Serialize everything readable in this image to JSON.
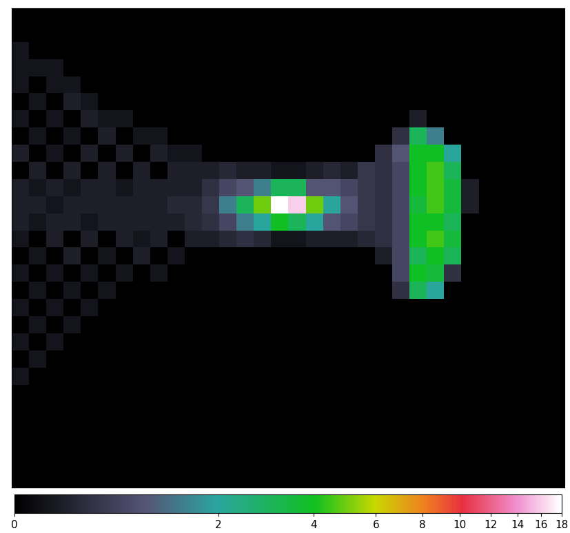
{
  "chart_data": {
    "type": "heatmap",
    "tick_labels": false,
    "cells": [
      [
        0,
        0,
        0,
        0,
        0,
        0,
        0,
        0,
        0,
        0,
        0,
        0,
        0,
        0,
        0,
        0,
        0,
        0,
        0,
        0,
        0,
        0,
        0,
        0,
        0,
        0,
        0,
        0,
        0,
        0,
        0,
        0
      ],
      [
        0,
        0,
        0,
        0,
        0,
        0,
        0,
        0,
        0,
        0,
        0,
        0,
        0,
        0,
        0,
        0,
        0,
        0,
        0,
        0,
        0,
        0,
        0,
        0,
        0,
        0,
        0,
        0,
        0,
        0,
        0,
        0
      ],
      [
        0.2,
        0,
        0,
        0,
        0,
        0,
        0,
        0,
        0,
        0,
        0,
        0,
        0,
        0,
        0,
        0,
        0,
        0,
        0,
        0,
        0,
        0,
        0,
        0,
        0,
        0,
        0,
        0,
        0,
        0,
        0,
        0
      ],
      [
        0.2,
        0.2,
        0.2,
        0,
        0,
        0,
        0,
        0,
        0,
        0,
        0,
        0,
        0,
        0,
        0,
        0,
        0,
        0,
        0,
        0,
        0,
        0,
        0,
        0,
        0,
        0,
        0,
        0,
        0,
        0,
        0,
        0
      ],
      [
        0.2,
        0,
        0.2,
        0.2,
        0,
        0,
        0,
        0,
        0,
        0,
        0,
        0,
        0,
        0,
        0,
        0,
        0,
        0,
        0,
        0,
        0,
        0,
        0,
        0,
        0,
        0,
        0,
        0,
        0,
        0,
        0,
        0
      ],
      [
        0,
        0.2,
        0,
        0.3,
        0.2,
        0,
        0,
        0,
        0,
        0,
        0,
        0,
        0,
        0,
        0,
        0,
        0,
        0,
        0,
        0,
        0,
        0,
        0,
        0,
        0,
        0,
        0,
        0,
        0,
        0,
        0,
        0
      ],
      [
        0.2,
        0,
        0.2,
        0,
        0.3,
        0.2,
        0.2,
        0,
        0,
        0,
        0,
        0,
        0,
        0,
        0,
        0,
        0,
        0,
        0,
        0,
        0,
        0,
        0,
        0.3,
        0,
        0,
        0,
        0,
        0,
        0,
        0,
        0
      ],
      [
        0,
        0.2,
        0,
        0.2,
        0,
        0.3,
        0,
        0.2,
        0.2,
        0,
        0,
        0,
        0,
        0,
        0,
        0,
        0,
        0,
        0,
        0,
        0,
        0,
        0.5,
        3,
        1.5,
        0,
        0,
        0,
        0,
        0,
        0,
        0
      ],
      [
        0.3,
        0,
        0.2,
        0,
        0.3,
        0,
        0.3,
        0,
        0.3,
        0.2,
        0.2,
        0,
        0,
        0,
        0,
        0,
        0,
        0,
        0,
        0,
        0,
        0.5,
        1,
        4,
        4,
        2,
        0,
        0,
        0,
        0,
        0,
        0
      ],
      [
        0,
        0.3,
        0,
        0.3,
        0,
        0.3,
        0,
        0.3,
        0,
        0.3,
        0.3,
        0.3,
        0.4,
        0.3,
        0.3,
        0.2,
        0.2,
        0.3,
        0.4,
        0.3,
        0.6,
        0.5,
        0.8,
        4,
        4.5,
        3,
        0,
        0,
        0,
        0,
        0,
        0
      ],
      [
        0.3,
        0.2,
        0.3,
        0.2,
        0.3,
        0.3,
        0.2,
        0.3,
        0.3,
        0.3,
        0.3,
        0.5,
        0.8,
        1,
        1.5,
        3,
        3,
        1,
        1,
        0.8,
        0.6,
        0.5,
        0.8,
        4,
        4.5,
        3.5,
        0.3,
        0,
        0,
        0,
        0,
        0
      ],
      [
        0.3,
        0.3,
        0.2,
        0.3,
        0.3,
        0.3,
        0.3,
        0.3,
        0.3,
        0.4,
        0.4,
        0.6,
        1.5,
        3,
        5,
        18,
        16,
        5,
        2,
        1,
        0.6,
        0.5,
        0.8,
        3.5,
        4.5,
        3.5,
        0.3,
        0,
        0,
        0,
        0,
        0
      ],
      [
        0.3,
        0.2,
        0.3,
        0.3,
        0.2,
        0.3,
        0.3,
        0.3,
        0.3,
        0.3,
        0.4,
        0.5,
        0.8,
        1.5,
        2,
        4,
        3,
        2,
        1,
        0.8,
        0.6,
        0.5,
        0.8,
        4,
        4,
        3,
        0,
        0,
        0,
        0,
        0,
        0
      ],
      [
        0.2,
        0,
        0.3,
        0,
        0.3,
        0,
        0.3,
        0.2,
        0.3,
        0,
        0.3,
        0.3,
        0.4,
        0.5,
        0.4,
        0.2,
        0.2,
        0.3,
        0.3,
        0.3,
        0.4,
        0.5,
        0.8,
        4,
        4.5,
        3.5,
        0,
        0,
        0,
        0,
        0,
        0
      ],
      [
        0,
        0.2,
        0,
        0.3,
        0,
        0.2,
        0,
        0.3,
        0,
        0.2,
        0,
        0,
        0,
        0,
        0,
        0,
        0,
        0,
        0,
        0,
        0,
        0.3,
        0.8,
        3,
        4,
        3,
        0,
        0,
        0,
        0,
        0,
        0
      ],
      [
        0.2,
        0,
        0.2,
        0,
        0.2,
        0,
        0.2,
        0,
        0.2,
        0,
        0,
        0,
        0,
        0,
        0,
        0,
        0,
        0,
        0,
        0,
        0,
        0,
        0.8,
        4,
        3.5,
        0.5,
        0,
        0,
        0,
        0,
        0,
        0
      ],
      [
        0,
        0.2,
        0,
        0.2,
        0,
        0.2,
        0,
        0,
        0,
        0,
        0,
        0,
        0,
        0,
        0,
        0,
        0,
        0,
        0,
        0,
        0,
        0,
        0.5,
        3,
        2,
        0,
        0,
        0,
        0,
        0,
        0,
        0
      ],
      [
        0.2,
        0,
        0.2,
        0,
        0.2,
        0,
        0,
        0,
        0,
        0,
        0,
        0,
        0,
        0,
        0,
        0,
        0,
        0,
        0,
        0,
        0,
        0,
        0,
        0,
        0,
        0,
        0,
        0,
        0,
        0,
        0,
        0
      ],
      [
        0,
        0.2,
        0,
        0.2,
        0,
        0,
        0,
        0,
        0,
        0,
        0,
        0,
        0,
        0,
        0,
        0,
        0,
        0,
        0,
        0,
        0,
        0,
        0,
        0,
        0,
        0,
        0,
        0,
        0,
        0,
        0,
        0
      ],
      [
        0.2,
        0,
        0.2,
        0,
        0,
        0,
        0,
        0,
        0,
        0,
        0,
        0,
        0,
        0,
        0,
        0,
        0,
        0,
        0,
        0,
        0,
        0,
        0,
        0,
        0,
        0,
        0,
        0,
        0,
        0,
        0,
        0
      ],
      [
        0,
        0.2,
        0,
        0,
        0,
        0,
        0,
        0,
        0,
        0,
        0,
        0,
        0,
        0,
        0,
        0,
        0,
        0,
        0,
        0,
        0,
        0,
        0,
        0,
        0,
        0,
        0,
        0,
        0,
        0,
        0,
        0
      ],
      [
        0.2,
        0,
        0,
        0,
        0,
        0,
        0,
        0,
        0,
        0,
        0,
        0,
        0,
        0,
        0,
        0,
        0,
        0,
        0,
        0,
        0,
        0,
        0,
        0,
        0,
        0,
        0,
        0,
        0,
        0,
        0,
        0
      ],
      [
        0,
        0,
        0,
        0,
        0,
        0,
        0,
        0,
        0,
        0,
        0,
        0,
        0,
        0,
        0,
        0,
        0,
        0,
        0,
        0,
        0,
        0,
        0,
        0,
        0,
        0,
        0,
        0,
        0,
        0,
        0,
        0
      ],
      [
        0,
        0,
        0,
        0,
        0,
        0,
        0,
        0,
        0,
        0,
        0,
        0,
        0,
        0,
        0,
        0,
        0,
        0,
        0,
        0,
        0,
        0,
        0,
        0,
        0,
        0,
        0,
        0,
        0,
        0,
        0,
        0
      ],
      [
        0,
        0,
        0,
        0,
        0,
        0,
        0,
        0,
        0,
        0,
        0,
        0,
        0,
        0,
        0,
        0,
        0,
        0,
        0,
        0,
        0,
        0,
        0,
        0,
        0,
        0,
        0,
        0,
        0,
        0,
        0,
        0
      ],
      [
        0,
        0,
        0,
        0,
        0,
        0,
        0,
        0,
        0,
        0,
        0,
        0,
        0,
        0,
        0,
        0,
        0,
        0,
        0,
        0,
        0,
        0,
        0,
        0,
        0,
        0,
        0,
        0,
        0,
        0,
        0,
        0
      ],
      [
        0,
        0,
        0,
        0,
        0,
        0,
        0,
        0,
        0,
        0,
        0,
        0,
        0,
        0,
        0,
        0,
        0,
        0,
        0,
        0,
        0,
        0,
        0,
        0,
        0,
        0,
        0,
        0,
        0,
        0,
        0,
        0
      ],
      [
        0,
        0,
        0,
        0,
        0,
        0,
        0,
        0,
        0,
        0,
        0,
        0,
        0,
        0,
        0,
        0,
        0,
        0,
        0,
        0,
        0,
        0,
        0,
        0,
        0,
        0,
        0,
        0,
        0,
        0,
        0,
        0
      ]
    ],
    "colorbar": {
      "range": [
        0,
        18
      ],
      "ticks": [
        0,
        2,
        4,
        6,
        8,
        10,
        12,
        14,
        16,
        18
      ]
    }
  }
}
